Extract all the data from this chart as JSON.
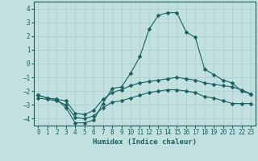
{
  "xlabel": "Humidex (Indice chaleur)",
  "xlim": [
    -0.5,
    23.5
  ],
  "ylim": [
    -4.5,
    4.5
  ],
  "yticks": [
    -4,
    -3,
    -2,
    -1,
    0,
    1,
    2,
    3,
    4
  ],
  "xticks": [
    0,
    1,
    2,
    3,
    4,
    5,
    6,
    7,
    8,
    9,
    10,
    11,
    12,
    13,
    14,
    15,
    16,
    17,
    18,
    19,
    20,
    21,
    22,
    23
  ],
  "background_color": "#c2e0e0",
  "grid_color": "#a8cccc",
  "line_color": "#1a6060",
  "series": [
    {
      "x": [
        0,
        1,
        2,
        3,
        4,
        5,
        6,
        7,
        8,
        9,
        10,
        11,
        12,
        13,
        14,
        15,
        16,
        17,
        18,
        19,
        20,
        21,
        22,
        23
      ],
      "y": [
        -2.3,
        -2.5,
        -2.6,
        -3.2,
        -4.3,
        -4.3,
        -4.1,
        -2.9,
        -1.8,
        -1.7,
        -0.7,
        0.5,
        2.5,
        3.5,
        3.7,
        3.7,
        2.3,
        1.9,
        -0.4,
        -0.8,
        -1.2,
        -1.4,
        -2.0,
        -2.2
      ]
    },
    {
      "x": [
        0,
        1,
        2,
        3,
        4,
        5,
        6,
        7,
        8,
        9,
        10,
        11,
        12,
        13,
        14,
        15,
        16,
        17,
        18,
        19,
        20,
        21,
        22,
        23
      ],
      "y": [
        -2.3,
        -2.5,
        -2.6,
        -2.7,
        -3.6,
        -3.7,
        -3.4,
        -2.6,
        -2.1,
        -1.9,
        -1.6,
        -1.4,
        -1.3,
        -1.2,
        -1.1,
        -1.0,
        -1.1,
        -1.2,
        -1.4,
        -1.5,
        -1.6,
        -1.7,
        -1.9,
        -2.2
      ]
    },
    {
      "x": [
        0,
        1,
        2,
        3,
        4,
        5,
        6,
        7,
        8,
        9,
        10,
        11,
        12,
        13,
        14,
        15,
        16,
        17,
        18,
        19,
        20,
        21,
        22,
        23
      ],
      "y": [
        -2.5,
        -2.6,
        -2.7,
        -3.0,
        -3.9,
        -4.0,
        -3.8,
        -3.2,
        -2.8,
        -2.7,
        -2.5,
        -2.3,
        -2.1,
        -2.0,
        -1.9,
        -1.9,
        -2.0,
        -2.1,
        -2.4,
        -2.5,
        -2.7,
        -2.9,
        -2.9,
        -2.9
      ]
    }
  ]
}
